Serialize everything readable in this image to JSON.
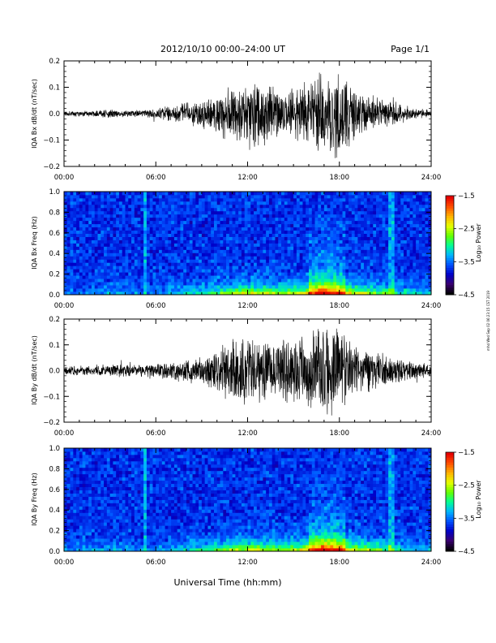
{
  "header": {
    "title": "2012/10/10   00:00–24:00 UT",
    "page": "Page 1/1"
  },
  "footer": {
    "xlabel": "Universal Time (hh:mm)",
    "stamp": "mhd Wed Sep 02 06:23:15 CST 2019"
  },
  "chart_data": [
    {
      "type": "line",
      "ylabel": "IQA Bx dB/dt (nT/sec)",
      "xlim": [
        0,
        24
      ],
      "ylim": [
        -0.2,
        0.2
      ],
      "x_ticks": [
        "00:00",
        "06:00",
        "12:00",
        "18:00",
        "24:00"
      ],
      "y_ticks": [
        "0.2",
        "0.1",
        "0.0",
        "−0.1",
        "−0.2"
      ],
      "envelope": {
        "hours": [
          0,
          1,
          2,
          3,
          4,
          5,
          6,
          7,
          8,
          9,
          10,
          11,
          12,
          13,
          14,
          15,
          16,
          17,
          18,
          19,
          20,
          21,
          22,
          23,
          24
        ],
        "amplitude": [
          0.012,
          0.012,
          0.013,
          0.02,
          0.014,
          0.013,
          0.02,
          0.035,
          0.045,
          0.06,
          0.08,
          0.13,
          0.14,
          0.14,
          0.1,
          0.1,
          0.14,
          0.17,
          0.18,
          0.1,
          0.075,
          0.06,
          0.04,
          0.022,
          0.015
        ]
      }
    },
    {
      "type": "heatmap",
      "ylabel": "IQA Bx Freq (Hz)",
      "xlim": [
        0,
        24
      ],
      "ylim": [
        0,
        1.0
      ],
      "x_ticks": [
        "00:00",
        "06:00",
        "12:00",
        "18:00",
        "24:00"
      ],
      "y_ticks": [
        "1.0",
        "0.8",
        "0.6",
        "0.4",
        "0.2",
        "0.0"
      ],
      "colorbar": {
        "label": "Log₁₀ Power",
        "range": [
          -4.5,
          -1.5
        ],
        "ticks": [
          "−1.5",
          "−2.5",
          "−3.5",
          "−4.5"
        ],
        "colors": [
          "#000000",
          "#3a0070",
          "#0000c8",
          "#0050ff",
          "#00b4ff",
          "#00ff96",
          "#64ff00",
          "#e6ff00",
          "#ffb400",
          "#ff5000",
          "#e60000"
        ]
      }
    },
    {
      "type": "line",
      "ylabel": "IQA By dB/dt (nT/sec)",
      "xlim": [
        0,
        24
      ],
      "ylim": [
        -0.2,
        0.2
      ],
      "x_ticks": [
        "00:00",
        "06:00",
        "12:00",
        "18:00",
        "24:00"
      ],
      "y_ticks": [
        "0.2",
        "0.1",
        "0.0",
        "−0.1",
        "−0.2"
      ],
      "envelope": {
        "hours": [
          0,
          1,
          2,
          3,
          4,
          5,
          6,
          7,
          8,
          9,
          10,
          11,
          12,
          13,
          14,
          15,
          16,
          17,
          18,
          19,
          20,
          21,
          22,
          23,
          24
        ],
        "amplitude": [
          0.02,
          0.02,
          0.022,
          0.03,
          0.025,
          0.025,
          0.03,
          0.04,
          0.05,
          0.06,
          0.09,
          0.14,
          0.15,
          0.14,
          0.13,
          0.14,
          0.16,
          0.19,
          0.19,
          0.11,
          0.09,
          0.07,
          0.05,
          0.035,
          0.025
        ]
      }
    },
    {
      "type": "heatmap",
      "ylabel": "IQA By Freq (Hz)",
      "xlim": [
        0,
        24
      ],
      "ylim": [
        0,
        1.0
      ],
      "x_ticks": [
        "00:00",
        "06:00",
        "12:00",
        "18:00",
        "24:00"
      ],
      "y_ticks": [
        "1.0",
        "0.8",
        "0.6",
        "0.4",
        "0.2",
        "0.0"
      ],
      "colorbar": {
        "label": "Log₁₀ Power",
        "range": [
          -4.5,
          -1.5
        ],
        "ticks": [
          "−1.5",
          "−2.5",
          "−3.5",
          "−4.5"
        ],
        "colors": [
          "#000000",
          "#3a0070",
          "#0000c8",
          "#0050ff",
          "#00b4ff",
          "#00ff96",
          "#64ff00",
          "#e6ff00",
          "#ffb400",
          "#ff5000",
          "#e60000"
        ]
      }
    }
  ]
}
